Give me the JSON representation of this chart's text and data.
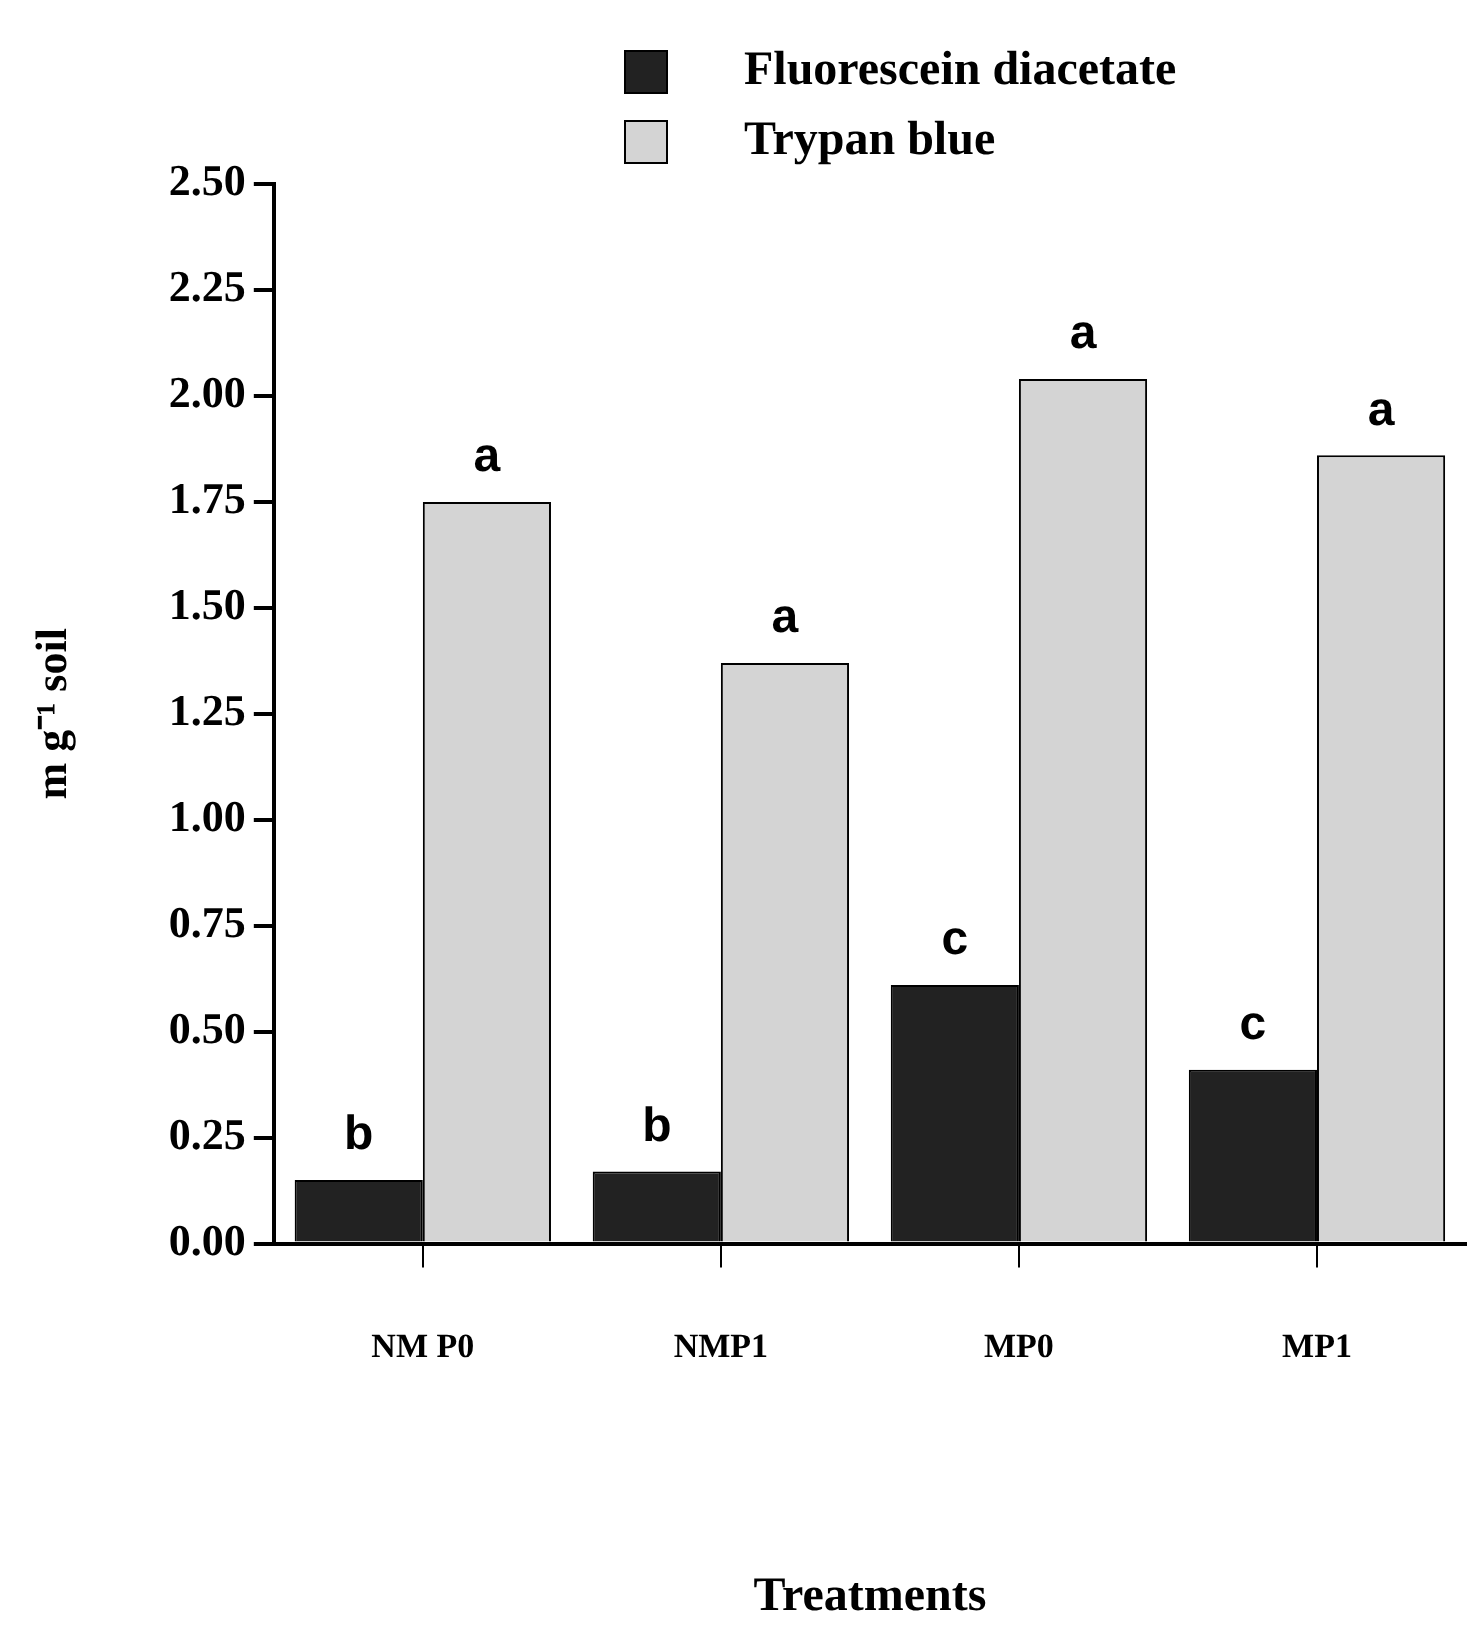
{
  "chart_data": {
    "type": "bar",
    "xlabel": "Treatments",
    "ylabel": "m g⁻¹ soil",
    "categories": [
      "NM P0",
      "NMP1",
      "MP0",
      "MP1"
    ],
    "series": [
      {
        "name": "Fluorescein diacetate",
        "color": "#222222",
        "values": [
          0.15,
          0.17,
          0.61,
          0.41
        ]
      },
      {
        "name": "Trypan blue",
        "color": "#d4d4d4",
        "values": [
          1.75,
          1.37,
          2.04,
          1.86
        ]
      }
    ],
    "ylim": [
      0,
      2.5
    ],
    "yticks": [
      {
        "value": 0,
        "label": "0.00"
      },
      {
        "value": 0.25,
        "label": "0.25"
      },
      {
        "value": 0.5,
        "label": "0.50"
      },
      {
        "value": 0.75,
        "label": "0.75"
      },
      {
        "value": 1,
        "label": "1.00"
      },
      {
        "value": 1.25,
        "label": "1.25"
      },
      {
        "value": 1.5,
        "label": "1.50"
      },
      {
        "value": 1.75,
        "label": "1.75"
      },
      {
        "value": 2,
        "label": "2.00"
      },
      {
        "value": 2.25,
        "label": "2.25"
      },
      {
        "value": 2.5,
        "label": "2.50"
      }
    ],
    "grid": false,
    "legend": "top right",
    "annotations": [
      {
        "text": "b",
        "x": "NM P0",
        "y": 0.15
      },
      {
        "text": "a",
        "x": "NM P0",
        "y": 1.75
      },
      {
        "text": "b",
        "x": "NMP1",
        "y": 0.17
      },
      {
        "text": "a",
        "x": "NMP1",
        "y": 1.37
      },
      {
        "text": "c",
        "x": "MP0",
        "y": 0.61
      },
      {
        "text": "a",
        "x": "MP0",
        "y": 2.04
      },
      {
        "text": "c",
        "x": "MP1",
        "y": 0.41
      },
      {
        "text": "a",
        "x": "MP1",
        "y": 1.86
      }
    ]
  }
}
